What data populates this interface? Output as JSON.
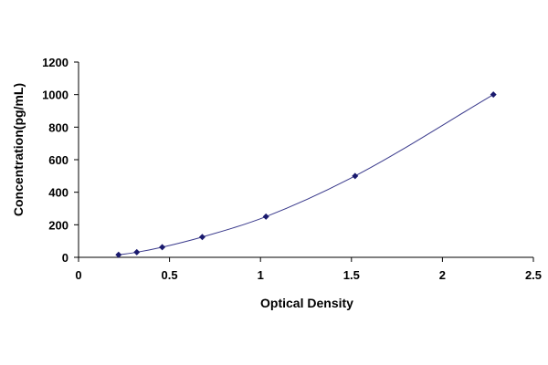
{
  "chart_data": {
    "type": "scatter",
    "title": "",
    "xlabel": "Optical Density",
    "ylabel": "Concentration(pg/mL)",
    "xlim": [
      0,
      2.5
    ],
    "ylim": [
      0,
      1200
    ],
    "x_ticks": [
      0,
      0.5,
      1,
      1.5,
      2,
      2.5
    ],
    "x_tick_labels": [
      "0",
      "0.5",
      "1",
      "1.5",
      "2",
      "2.5"
    ],
    "y_ticks": [
      0,
      200,
      400,
      600,
      800,
      1000,
      1200
    ],
    "y_tick_labels": [
      "0",
      "200",
      "400",
      "600",
      "800",
      "1000",
      "1200"
    ],
    "grid": false,
    "legend": "none",
    "series": [
      {
        "x": [
          0.22,
          0.32,
          0.46,
          0.68,
          1.03,
          1.52,
          2.28
        ],
        "y": [
          15.6,
          31.2,
          62.5,
          125,
          250,
          500,
          1000
        ],
        "color": "#1a1a6e",
        "marker": "diamond",
        "trendline": "smooth curve"
      }
    ]
  }
}
